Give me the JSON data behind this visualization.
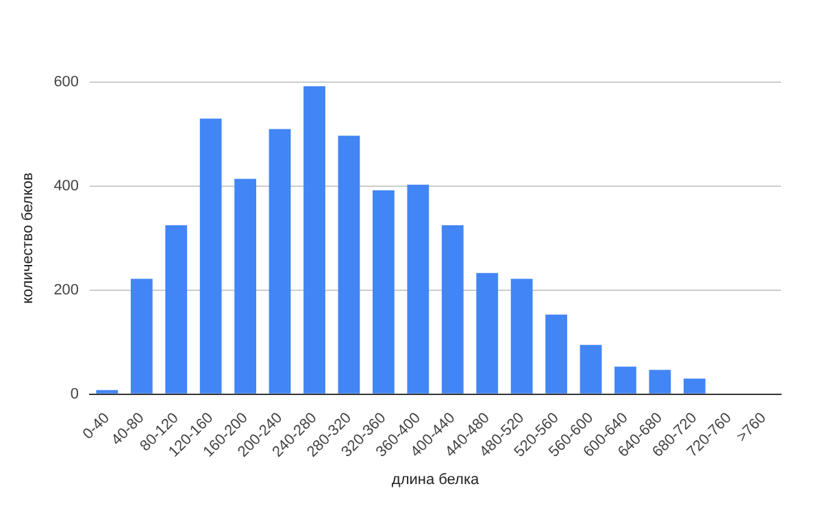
{
  "chart_data": {
    "type": "bar",
    "xlabel": "длина белка",
    "ylabel": "количество белков",
    "categories": [
      "0-40",
      "40-80",
      "80-120",
      "120-160",
      "160-200",
      "200-240",
      "240-280",
      "280-320",
      "320-360",
      "360-400",
      "400-440",
      "440-480",
      "480-520",
      "520-560",
      "560-600",
      "600-640",
      "640-680",
      "680-720",
      "720-760",
      ">760"
    ],
    "values": [
      8,
      222,
      325,
      530,
      414,
      510,
      592,
      497,
      392,
      403,
      325,
      233,
      222,
      153,
      95,
      53,
      47,
      30,
      0,
      0
    ],
    "color": "#4285f4",
    "ylim": [
      0,
      600
    ],
    "yticks": [
      0,
      200,
      400,
      600
    ],
    "grid": "y",
    "legend": false
  }
}
